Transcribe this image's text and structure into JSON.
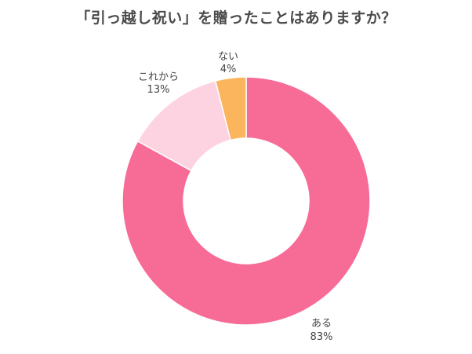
{
  "chart_data": {
    "type": "pie",
    "title": "「引っ越し祝い」を贈ったことはありますか？",
    "donut": true,
    "slices": [
      {
        "label": "ある",
        "value": 83,
        "value_label": "83%",
        "color": "#f76b97"
      },
      {
        "label": "これから",
        "value": 13,
        "value_label": "13%",
        "color": "#fdd3e2"
      },
      {
        "label": "ない",
        "value": 4,
        "value_label": "4%",
        "color": "#fbb55c"
      }
    ]
  }
}
